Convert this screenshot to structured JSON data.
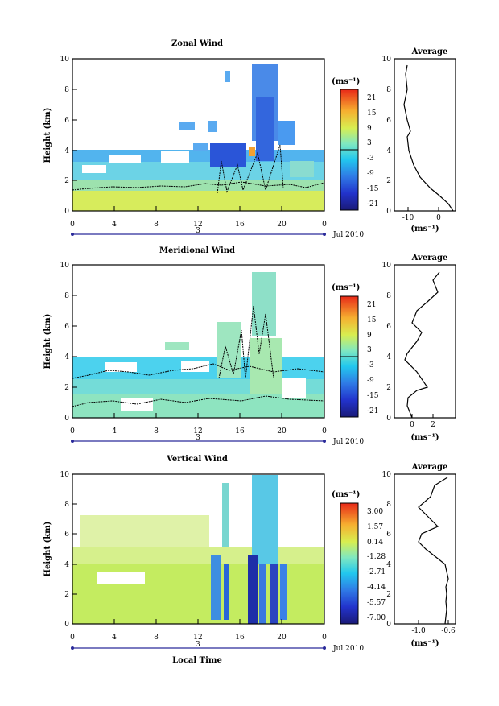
{
  "panels": [
    {
      "title": "Zonal Wind",
      "ylabel": "Height (km)",
      "xticks": [
        "0",
        "4",
        "8",
        "12",
        "16",
        "20",
        "0"
      ],
      "yticks": [
        "0",
        "2",
        "4",
        "6",
        "8",
        "10"
      ],
      "day_label": "3",
      "month_label": "Jul 2010",
      "colorbar": {
        "unit": "(ms⁻¹)",
        "ticks": [
          "21",
          "15",
          "9",
          "3",
          "-3",
          "-9",
          "-15",
          "-21"
        ]
      },
      "avg_title": "Average",
      "avg_xticks": [
        "-10",
        "0"
      ],
      "avg_xlabel": "(ms⁻¹)"
    },
    {
      "title": "Meridional Wind",
      "ylabel": "Height (km)",
      "xticks": [
        "0",
        "4",
        "8",
        "12",
        "16",
        "20",
        "0"
      ],
      "yticks": [
        "0",
        "2",
        "4",
        "6",
        "8",
        "10"
      ],
      "day_label": "3",
      "month_label": "Jul 2010",
      "colorbar": {
        "unit": "(ms⁻¹)",
        "ticks": [
          "21",
          "15",
          "9",
          "3",
          "-3",
          "-9",
          "-15",
          "-21"
        ]
      },
      "avg_title": "Average",
      "avg_xticks": [
        "0",
        "2"
      ],
      "avg_xlabel": "(ms⁻¹)"
    },
    {
      "title": "Vertical Wind",
      "ylabel": "Height (km)",
      "xlabel": "Local Time",
      "xticks": [
        "0",
        "4",
        "8",
        "12",
        "16",
        "20",
        "0"
      ],
      "yticks": [
        "0",
        "2",
        "4",
        "6",
        "8",
        "10"
      ],
      "day_label": "3",
      "month_label": "Jul 2010",
      "colorbar": {
        "unit": "(ms⁻¹)",
        "ticks": [
          "3.00",
          "1.57",
          "0.14",
          "-1.28",
          "-2.71",
          "-4.14",
          "-5.57",
          "-7.00"
        ]
      },
      "avg_title": "Average",
      "avg_xticks": [
        "-1.0",
        "-0.6"
      ],
      "avg_xlabel": "(ms⁻¹)"
    }
  ],
  "chart_data": [
    {
      "type": "heatmap",
      "title": "Zonal Wind",
      "xlabel": "",
      "ylabel": "Height (km)",
      "xlim": [
        0,
        24
      ],
      "ylim": [
        0,
        10
      ],
      "clim": [
        -24,
        24
      ],
      "regions": [
        {
          "x": [
            0,
            24
          ],
          "y": [
            0,
            1
          ],
          "value": 9
        },
        {
          "x": [
            0,
            24
          ],
          "y": [
            1,
            2
          ],
          "value": 3
        },
        {
          "x": [
            0,
            24
          ],
          "y": [
            2,
            3.2
          ],
          "value": -3
        },
        {
          "x": [
            0,
            24
          ],
          "y": [
            3.2,
            4
          ],
          "value": -9
        },
        {
          "x": [
            13,
            17
          ],
          "y": [
            3,
            4.5
          ],
          "value": -18
        },
        {
          "x": [
            17,
            20
          ],
          "y": [
            4,
            9.5
          ],
          "value": -12
        },
        {
          "x": [
            17,
            17.5
          ],
          "y": [
            3.5,
            4.2
          ],
          "value": 15
        }
      ]
    },
    {
      "type": "line",
      "title": "Average",
      "xlabel": "(ms⁻¹)",
      "ylabel": "",
      "xlim": [
        -13,
        5
      ],
      "ylim": [
        0,
        10
      ],
      "series": [
        {
          "x": [
            4.5,
            3,
            0,
            -3,
            -6,
            -8,
            -9.5,
            -10,
            -9,
            -10,
            -11,
            -10,
            -10.5,
            -10
          ],
          "y": [
            0,
            0.5,
            1,
            1.5,
            2.2,
            3,
            4,
            5,
            5.4,
            6,
            7,
            8,
            9,
            9.6
          ]
        }
      ]
    },
    {
      "type": "heatmap",
      "title": "Meridional Wind",
      "xlabel": "",
      "ylabel": "Height (km)",
      "xlim": [
        0,
        24
      ],
      "ylim": [
        0,
        10
      ],
      "clim": [
        -24,
        24
      ],
      "regions": [
        {
          "x": [
            0,
            24
          ],
          "y": [
            0,
            1.5
          ],
          "value": 3
        },
        {
          "x": [
            0,
            24
          ],
          "y": [
            1.5,
            2.5
          ],
          "value": 0
        },
        {
          "x": [
            0,
            24
          ],
          "y": [
            2.5,
            4
          ],
          "value": -3
        },
        {
          "x": [
            14,
            20
          ],
          "y": [
            0,
            5
          ],
          "value": 3
        },
        {
          "x": [
            17,
            20
          ],
          "y": [
            5,
            9.5
          ],
          "value": 0
        }
      ]
    },
    {
      "type": "line",
      "title": "Average",
      "xlabel": "(ms⁻¹)",
      "ylabel": "",
      "xlim": [
        -1,
        4
      ],
      "ylim": [
        0,
        10
      ],
      "series": [
        {
          "x": [
            1,
            0.5,
            0.6,
            1.5,
            2.5,
            1.5,
            0.3,
            0.5,
            1.5,
            2.0,
            1.0,
            1.5,
            2.5,
            3.5,
            3.0,
            3.6
          ],
          "y": [
            0,
            0.8,
            1.3,
            1.8,
            2.0,
            3.0,
            3.8,
            4.2,
            5.0,
            5.6,
            6.2,
            7.0,
            7.6,
            8.2,
            9.0,
            9.6
          ]
        }
      ]
    },
    {
      "type": "heatmap",
      "title": "Vertical Wind",
      "xlabel": "Local Time",
      "ylabel": "Height (km)",
      "xlim": [
        0,
        24
      ],
      "ylim": [
        0,
        10
      ],
      "clim": [
        -7.71,
        3.71
      ],
      "regions": [
        {
          "x": [
            0,
            24
          ],
          "y": [
            0,
            4
          ],
          "value": 0.14
        },
        {
          "x": [
            0,
            24
          ],
          "y": [
            4,
            9.5
          ],
          "value": 0.14
        },
        {
          "x": [
            17,
            20
          ],
          "y": [
            4,
            9.5
          ],
          "value": -2.71
        },
        {
          "x": [
            17,
            18
          ],
          "y": [
            0,
            5
          ],
          "value": -7.0
        },
        {
          "x": [
            19.5,
            20.2
          ],
          "y": [
            0,
            4.5
          ],
          "value": -5.57
        },
        {
          "x": [
            13.5,
            14.2
          ],
          "y": [
            0,
            4.5
          ],
          "value": -4.14
        }
      ]
    },
    {
      "type": "line",
      "title": "Average",
      "xlabel": "(ms⁻¹)",
      "ylabel": "",
      "xlim": [
        -1.4,
        -0.55
      ],
      "ylim": [
        0,
        10
      ],
      "series": [
        {
          "x": [
            -0.65,
            -0.63,
            -0.62,
            -0.64,
            -0.62,
            -0.63,
            -0.6,
            -0.62,
            -0.65,
            -0.9,
            -1.0,
            -0.95,
            -0.7,
            -0.8,
            -1.0,
            -0.8,
            -0.75,
            -0.6
          ],
          "y": [
            0,
            0.5,
            1,
            1.5,
            2,
            2.5,
            3,
            3.5,
            4,
            5,
            5.5,
            6,
            6.5,
            7,
            7.8,
            8.5,
            9.2,
            9.8
          ]
        }
      ]
    }
  ]
}
